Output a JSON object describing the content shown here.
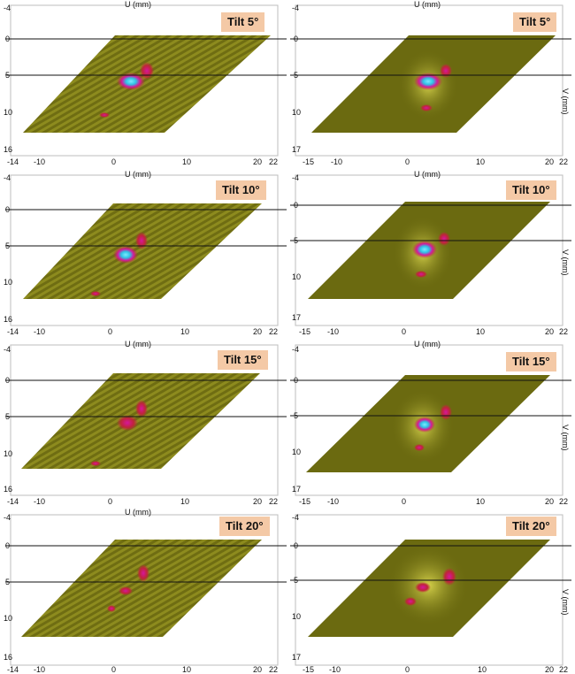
{
  "axes": {
    "u_label": "U (mm)",
    "v_label": "V (mm)",
    "v_ticks": [
      "-4",
      "0",
      "5",
      "10",
      "16"
    ],
    "v_ticks_right": [
      "-4",
      "0",
      "5",
      "10",
      "17"
    ],
    "u_ticks_left": [
      "-14",
      "-10",
      "0",
      "10",
      "20",
      "22"
    ],
    "u_ticks_right": [
      "-15",
      "-10",
      "0",
      "10",
      "20",
      "22"
    ]
  },
  "panels": [
    {
      "tilt": "Tilt 5°",
      "variant": "raw"
    },
    {
      "tilt": "Tilt 5°",
      "variant": "processed"
    },
    {
      "tilt": "Tilt 10°",
      "variant": "raw"
    },
    {
      "tilt": "Tilt 10°",
      "variant": "processed"
    },
    {
      "tilt": "Tilt 15°",
      "variant": "raw"
    },
    {
      "tilt": "Tilt 15°",
      "variant": "processed"
    },
    {
      "tilt": "Tilt 20°",
      "variant": "raw"
    },
    {
      "tilt": "Tilt 20°",
      "variant": "processed"
    }
  ],
  "colors": {
    "scan_base": "#6b6a10",
    "scan_light": "#a9a82a",
    "hot_red": "#c0243a",
    "hot_magenta": "#d5179b",
    "hot_cyan": "#2ec5e6",
    "badge_bg": "#f4c9a6"
  }
}
